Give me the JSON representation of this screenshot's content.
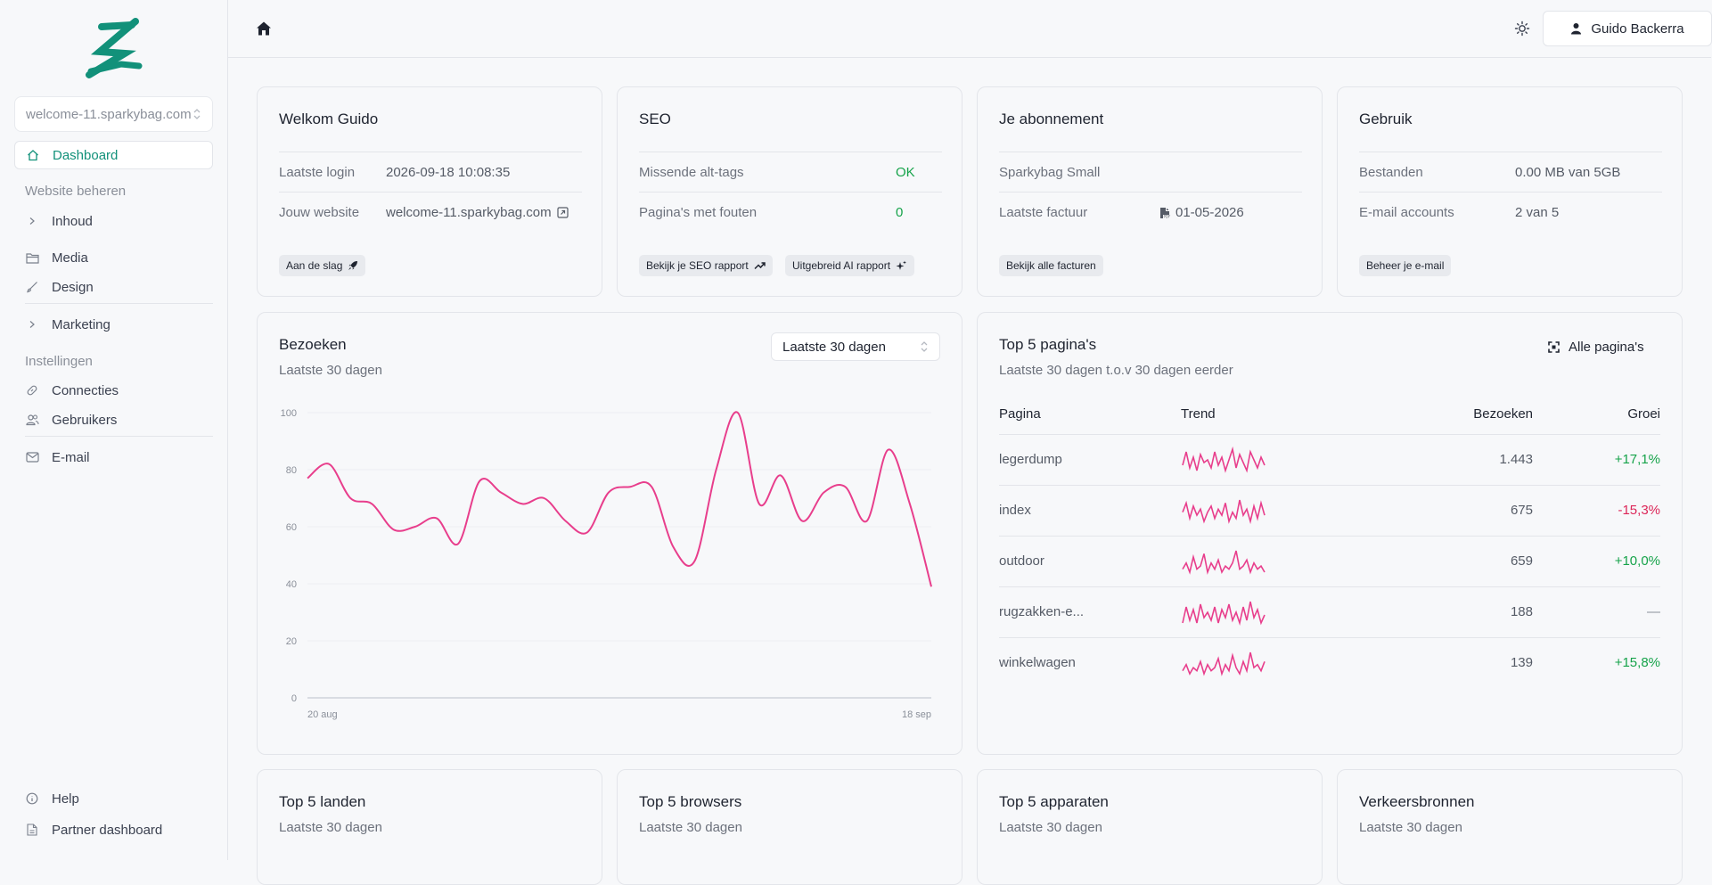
{
  "sidebar": {
    "site_select": "welcome-11.sparkybag.com",
    "nav_dashboard": "Dashboard",
    "section_website": "Website beheren",
    "nav_inhoud": "Inhoud",
    "nav_media": "Media",
    "nav_design": "Design",
    "nav_marketing": "Marketing",
    "section_settings": "Instellingen",
    "nav_connecties": "Connecties",
    "nav_gebruikers": "Gebruikers",
    "nav_email": "E-mail",
    "nav_help": "Help",
    "nav_partner": "Partner dashboard"
  },
  "topbar": {
    "user_name": "Guido Backerra"
  },
  "welcome": {
    "title": "Welkom Guido",
    "last_login_label": "Laatste login",
    "last_login_value": "2026-09-18 10:08:35",
    "website_label": "Jouw website",
    "website_value": "welcome-11.sparkybag.com",
    "chip": "Aan de slag"
  },
  "seo": {
    "title": "SEO",
    "alt_tags_label": "Missende alt-tags",
    "alt_tags_value": "OK",
    "errors_label": "Pagina's met fouten",
    "errors_value": "0",
    "chip_report": "Bekijk je SEO rapport",
    "chip_ai": "Uitgebreid AI rapport"
  },
  "subscription": {
    "title": "Je abonnement",
    "plan": "Sparkybag Small",
    "invoice_label": "Laatste factuur",
    "invoice_value": "01-05-2026",
    "chip": "Bekijk alle facturen"
  },
  "usage": {
    "title": "Gebruik",
    "files_label": "Bestanden",
    "files_value": "0.00 MB van 5GB",
    "email_label": "E-mail accounts",
    "email_value": "2 van 5",
    "chip": "Beheer je e-mail"
  },
  "visits": {
    "title": "Bezoeken",
    "subtitle": "Laatste 30 dagen",
    "range": "Laatste 30 dagen"
  },
  "chart_data": {
    "type": "line",
    "title": "Bezoeken",
    "x_start": "20 aug",
    "x_end": "18 sep",
    "x_tick_labels": [
      "20 aug",
      "18 sep"
    ],
    "y_ticks": [
      "0",
      "20",
      "40",
      "60",
      "80",
      "100"
    ],
    "ylim": [
      0,
      100
    ],
    "grid": true,
    "color": "#e83e8c",
    "series": [
      {
        "values": [
          77,
          82,
          70,
          68,
          59,
          60,
          63,
          54,
          76,
          72,
          68,
          70,
          62,
          58,
          72,
          74,
          74,
          53,
          48,
          80,
          100,
          68,
          78,
          62,
          72,
          74,
          62,
          87,
          68,
          39
        ]
      }
    ]
  },
  "top_pages": {
    "title": "Top 5 pagina's",
    "subtitle": "Laatste 30 dagen t.o.v 30 dagen eerder",
    "all_pages": "Alle pagina's",
    "col_page": "Pagina",
    "col_trend": "Trend",
    "col_visits": "Bezoeken",
    "col_growth": "Groei",
    "rows": [
      {
        "page": "legerdump",
        "visits": "1.443",
        "growth": "+17,1%",
        "trend": "pos",
        "spark": [
          4,
          9,
          3,
          7,
          2,
          8,
          5,
          6,
          3,
          9,
          4,
          7,
          2,
          6,
          10,
          3,
          8,
          5,
          2,
          9,
          6,
          3,
          7,
          4
        ]
      },
      {
        "page": "index",
        "visits": "675",
        "growth": "-15,3%",
        "trend": "neg",
        "spark": [
          6,
          9,
          4,
          8,
          5,
          7,
          3,
          6,
          8,
          4,
          7,
          5,
          9,
          3,
          6,
          4,
          10,
          5,
          7,
          3,
          8,
          4,
          9,
          5
        ]
      },
      {
        "page": "outdoor",
        "visits": "659",
        "growth": "+10,0%",
        "trend": "pos",
        "spark": [
          3,
          5,
          2,
          7,
          3,
          4,
          8,
          2,
          5,
          3,
          6,
          2,
          4,
          3,
          5,
          9,
          3,
          4,
          6,
          2,
          5,
          3,
          4,
          2
        ]
      },
      {
        "page": "rugzakken-e...",
        "visits": "188",
        "growth": "—",
        "trend": "neu",
        "spark": [
          2,
          8,
          3,
          7,
          2,
          9,
          4,
          6,
          3,
          8,
          2,
          7,
          4,
          9,
          3,
          6,
          2,
          8,
          3,
          10,
          4,
          7,
          2,
          5
        ]
      },
      {
        "page": "winkelwagen",
        "visits": "139",
        "growth": "+15,8%",
        "trend": "pos",
        "spark": [
          3,
          5,
          2,
          4,
          3,
          6,
          2,
          5,
          3,
          4,
          7,
          2,
          5,
          3,
          8,
          4,
          2,
          6,
          3,
          9,
          4,
          5,
          3,
          6
        ]
      }
    ]
  },
  "bottom_cards": {
    "countries_title": "Top 5 landen",
    "countries_sub": "Laatste 30 dagen",
    "browsers_title": "Top 5 browsers",
    "browsers_sub": "Laatste 30 dagen",
    "devices_title": "Top 5 apparaten",
    "devices_sub": "Laatste 30 dagen",
    "traffic_title": "Verkeersbronnen",
    "traffic_sub": "Laatste 30 dagen"
  },
  "colors": {
    "brand": "#12917a",
    "accent_line": "#e83e8c",
    "positive": "#16a34a",
    "negative": "#dc2658"
  }
}
